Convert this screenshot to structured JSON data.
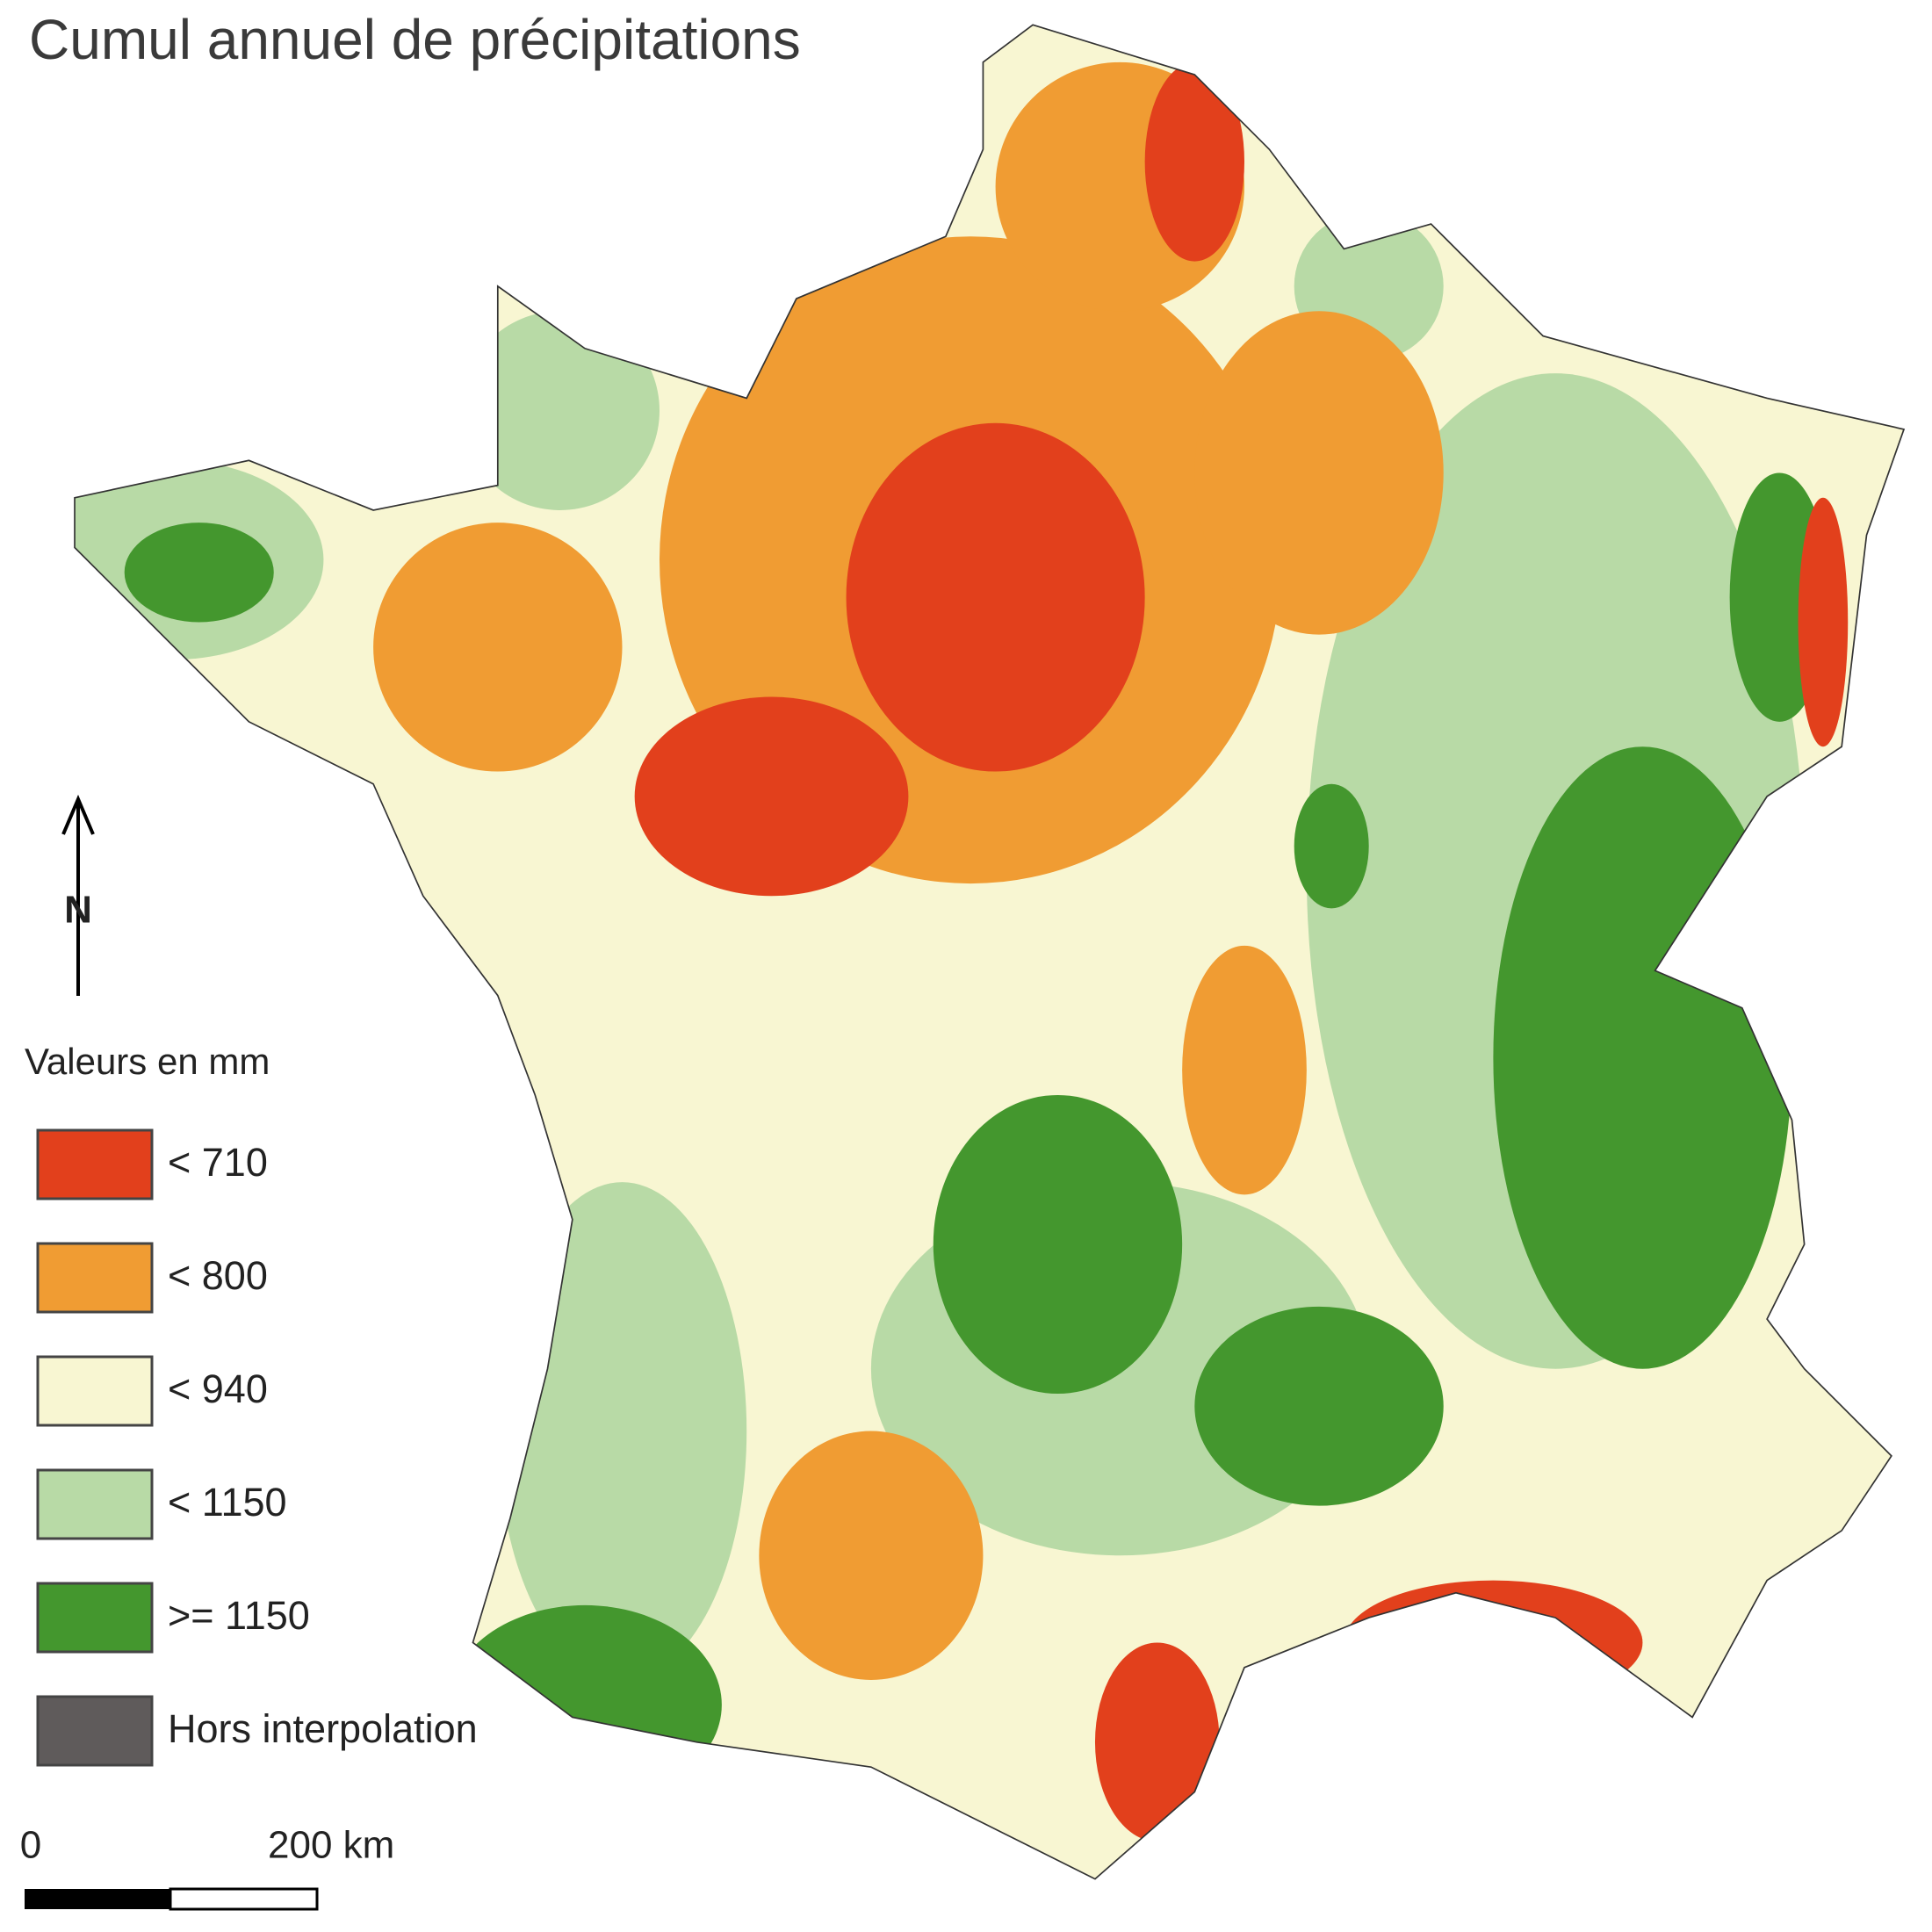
{
  "title": "Cumul annuel de précipitations",
  "legend": {
    "title": "Valeurs en mm",
    "items": [
      {
        "label": "< 710",
        "color": "#e2401c"
      },
      {
        "label": "< 800",
        "color": "#f09c33"
      },
      {
        "label": "< 940",
        "color": "#f8f6d2"
      },
      {
        "label": "< 1150",
        "color": "#b8daa6"
      },
      {
        "label": ">= 1150",
        "color": "#44972e"
      },
      {
        "label": "Hors interpolation",
        "color": "#5f5b5b"
      }
    ]
  },
  "north_arrow": {
    "label": "N"
  },
  "scale_bar": {
    "start_label": "0",
    "end_label": "200 km"
  }
}
